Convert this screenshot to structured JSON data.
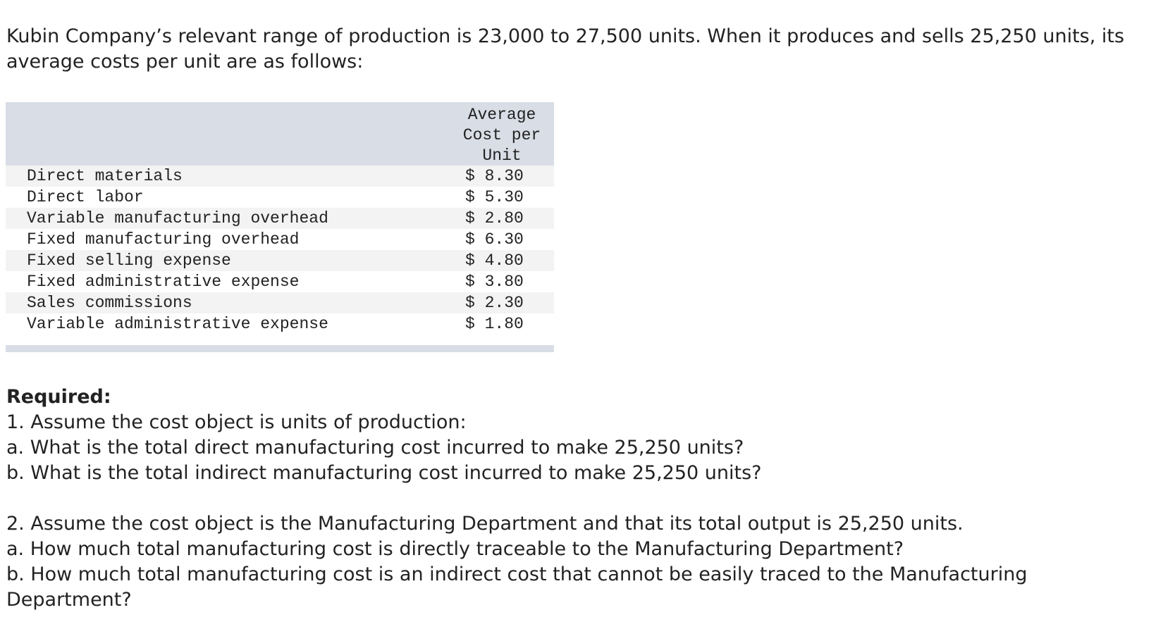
{
  "intro": "Kubin Company’s relevant range of production is 23,000 to 27,500 units. When it produces and sells 25,250 units, its average costs per unit are as follows:",
  "table": {
    "header": "Average Cost per Unit",
    "rows": [
      [
        "Direct materials",
        "$ 8.30"
      ],
      [
        "Direct labor",
        "$ 5.30"
      ],
      [
        "Variable manufacturing overhead",
        "$ 2.80"
      ],
      [
        "Fixed manufacturing overhead",
        "$ 6.30"
      ],
      [
        "Fixed selling expense",
        "$ 4.80"
      ],
      [
        "Fixed administrative expense",
        "$ 3.80"
      ],
      [
        "Sales commissions",
        "$ 2.30"
      ],
      [
        "Variable administrative expense",
        "$ 1.80"
      ]
    ]
  },
  "required": {
    "heading": "Required:",
    "lines": [
      "1. Assume the cost object is units of production:",
      "a. What is the total direct manufacturing cost incurred to make 25,250 units?",
      "b. What is the total indirect manufacturing cost incurred to make 25,250 units?"
    ],
    "lines2": [
      "2. Assume the cost object is the Manufacturing Department and that its total output is 25,250 units.",
      "a. How much total manufacturing cost is directly traceable to the Manufacturing Department?",
      "b. How much total manufacturing cost is an indirect cost that cannot be easily traced to the Manufacturing Department?"
    ]
  }
}
